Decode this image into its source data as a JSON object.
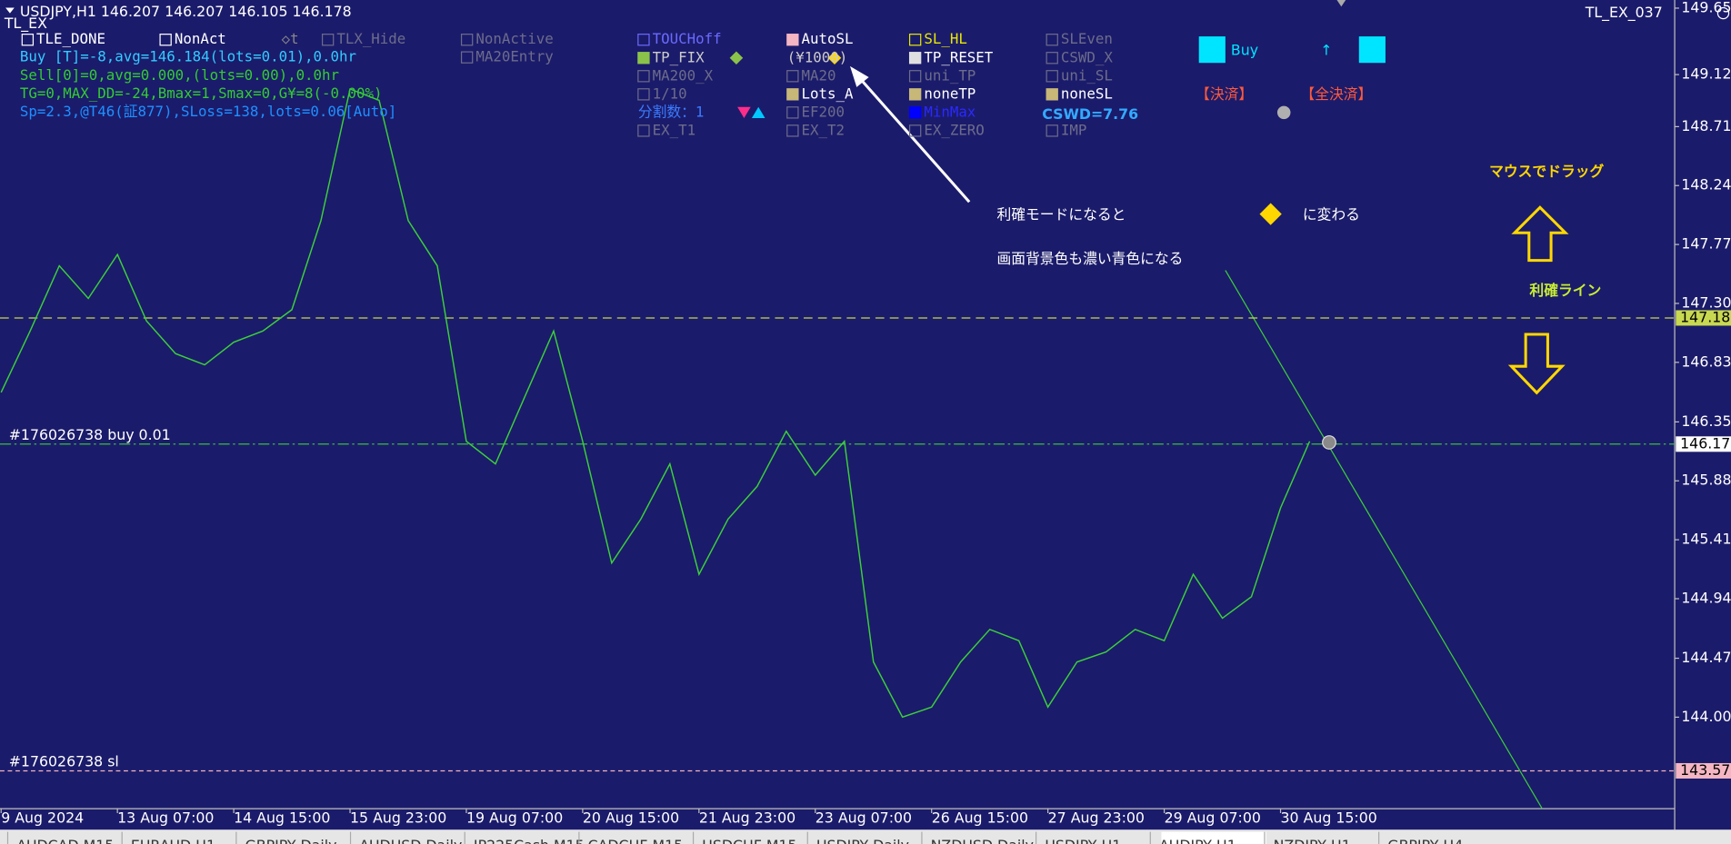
{
  "header": {
    "symbol_line": "USDJPY,H1  146.207 146.207 146.105 146.178",
    "indicator": "TL_EX",
    "expert": "TL_EX_037"
  },
  "toolbar": {
    "row1": [
      "TLE_DONE",
      "NonAct",
      "◇t",
      "TLX_Hide",
      "NonActive"
    ],
    "row2": [
      "MA20Entry"
    ]
  },
  "info_lines": [
    "Buy [T]=-8,avg=146.184(lots=0.01),0.0hr",
    "Sell[0]=0,avg=0.000,(lots=0.00),0.0hr",
    "TG=0,MAX_DD=-24,Bmax=1,Smax=0,G¥=8(-0.00%)",
    "Sp=2.3,@T46(証877),SLoss=138,lots=0.06[Auto]"
  ],
  "panel": {
    "rows": [
      [
        "TOUCHoff",
        "AutoSL",
        "SL_HL",
        "SLEven"
      ],
      [
        "TP_FIX",
        "(¥1000)",
        "TP_RESET",
        "CSWD_X"
      ],
      [
        "MA200_X",
        "MA20",
        "uni_TP",
        "uni_SL"
      ],
      [
        "1/10",
        "Lots_A",
        "noneTP",
        "noneSL"
      ],
      [
        "分割数：1",
        "EF200",
        "MinMax",
        "CSWD=7.76"
      ],
      [
        "EX_T1",
        "EX_T2",
        "EX_ZERO",
        "IMP"
      ]
    ]
  },
  "buy_panel": {
    "title": "Buy",
    "arrow": "↑",
    "close": "【決済】",
    "close_all": "【全決済】"
  },
  "annotation": {
    "line1_start": "利確モードになると",
    "line1_end": "に変わる",
    "line2": "画面背景色も濃い青色になる",
    "drag": "マウスでドラッグ",
    "tp_line": "利確ライン"
  },
  "order_labels": [
    "#176026738 buy 0.01",
    "#176026738 sl"
  ],
  "tabs": [
    "AUDCAD,M15",
    "EURAUD,H1",
    "GBPJPY,Daily",
    "AUDUSD,Daily",
    "JP225Cash,M15",
    "CADCHF,M15",
    "USDCHF,M15",
    "USDJPY,Daily",
    "NZDUSD,Daily",
    "USDJPY,H1",
    "AUDJPY,H1",
    "NZDJPY,H1",
    "GBPJPY,H4"
  ],
  "chart_data": {
    "type": "line",
    "categories": [
      "9 Aug 2024",
      null,
      null,
      null,
      "13 Aug 07:00",
      null,
      null,
      null,
      "14 Aug 15:00",
      null,
      null,
      null,
      "15 Aug 23:00",
      null,
      null,
      null,
      "19 Aug 07:00",
      null,
      null,
      null,
      "20 Aug 15:00",
      null,
      null,
      null,
      "21 Aug 23:00",
      null,
      null,
      null,
      "23 Aug 07:00",
      null,
      null,
      null,
      "26 Aug 15:00",
      null,
      null,
      null,
      "27 Aug 23:00",
      null,
      null,
      null,
      "29 Aug 07:00",
      null,
      null,
      null,
      "30 Aug 15:00",
      null
    ],
    "values": [
      146.59,
      147.08,
      147.6,
      147.34,
      147.69,
      147.16,
      146.9,
      146.81,
      146.99,
      147.08,
      147.25,
      147.96,
      149.01,
      148.92,
      147.96,
      147.6,
      146.2,
      146.02,
      146.55,
      147.08,
      146.2,
      145.23,
      145.58,
      146.02,
      145.14,
      145.58,
      145.84,
      146.28,
      145.93,
      146.2,
      144.44,
      144.0,
      144.08,
      144.44,
      144.7,
      144.61,
      144.08,
      144.44,
      144.52,
      144.7,
      144.61,
      145.14,
      144.79,
      144.96,
      145.67,
      146.2
    ],
    "color": "#3ad13a",
    "ylim": [
      143.27,
      149.72
    ],
    "yticks": [
      149.655,
      149.125,
      {
        "value": 148.71,
        "label": "148.710"
      },
      {
        "value": 148.24,
        "label": "148.240"
      },
      147.77,
      {
        "value": 147.3,
        "label": "147.300"
      },
      {
        "value": 146.83,
        "label": "146.830"
      },
      146.355,
      145.885,
      145.415,
      144.945,
      {
        "value": 144.47,
        "label": "144.470"
      },
      {
        "value": 144,
        "label": "144.000"
      }
    ],
    "levels": [
      147.184,
      146.178,
      143.572
    ],
    "level_colors": [
      "#c8d850",
      "#ffffff",
      "#f4b6c2"
    ],
    "grid": false
  }
}
